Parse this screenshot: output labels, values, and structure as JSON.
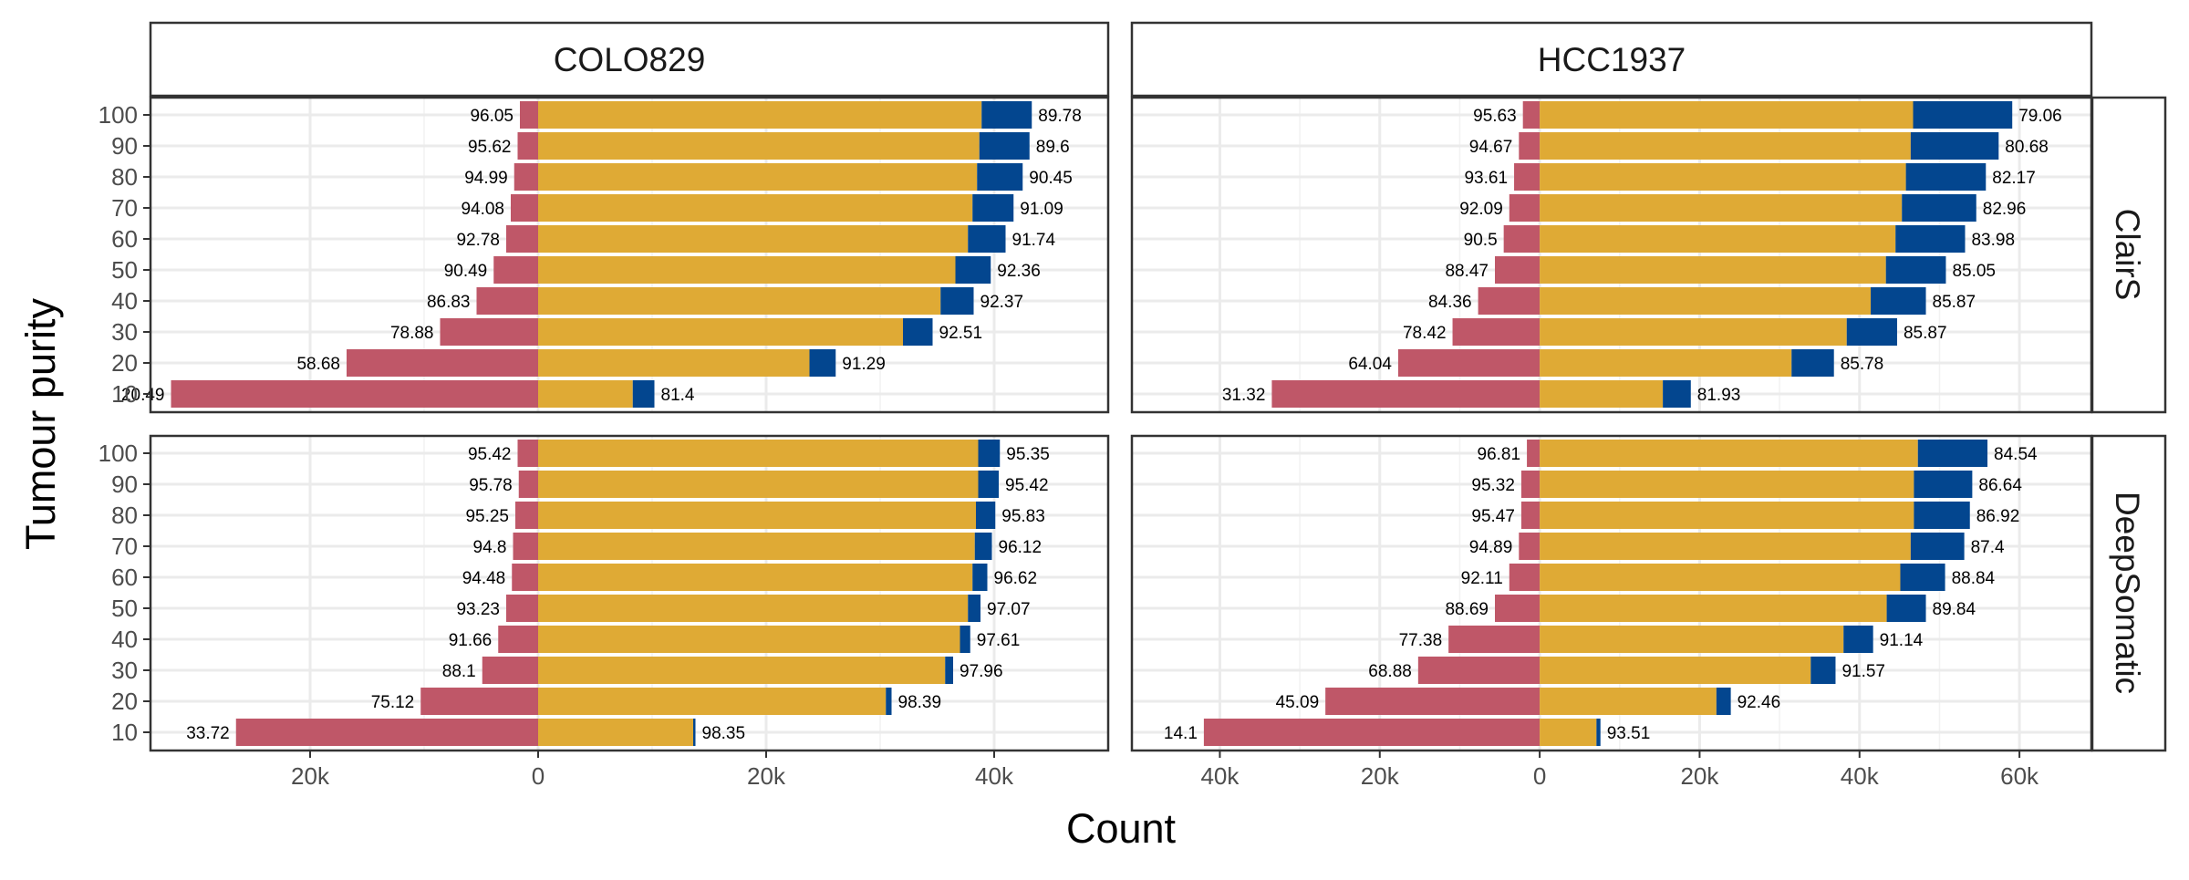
{
  "chart_data": {
    "type": "bar",
    "orientation": "horizontal",
    "layout": "faceted 2x2 diverging stacked bars",
    "xlabel": "Count",
    "ylabel": "Tumour purity",
    "column_facets": [
      "COLO829",
      "HCC1937"
    ],
    "row_facets": [
      "ClairS",
      "DeepSomatic"
    ],
    "categories": [
      "100",
      "90",
      "80",
      "70",
      "60",
      "50",
      "40",
      "30",
      "20",
      "10"
    ],
    "colors": {
      "left": "#BF5768",
      "middle": "#DFAA35",
      "right": "#03468F"
    },
    "grid": true,
    "panels": [
      {
        "column": "COLO829",
        "row": "ClairS",
        "xlim": [
          -34000,
          50000
        ],
        "ticks": [
          {
            "v": -20000,
            "label": "20k"
          },
          {
            "v": 0,
            "label": "0"
          },
          {
            "v": 20000,
            "label": "20k"
          },
          {
            "v": 40000,
            "label": "40k"
          }
        ],
        "left": [
          1600,
          1800,
          2100,
          2400,
          2800,
          3900,
          5400,
          8600,
          16800,
          32200
        ],
        "middle": [
          38900,
          38700,
          38500,
          38100,
          37700,
          36600,
          35300,
          32000,
          23800,
          8300
        ],
        "right": [
          4400,
          4400,
          4000,
          3600,
          3300,
          3100,
          2900,
          2600,
          2300,
          1900
        ],
        "left_labels": [
          "96.05",
          "95.62",
          "94.99",
          "94.08",
          "92.78",
          "90.49",
          "86.83",
          "78.88",
          "58.68",
          "20.49"
        ],
        "right_labels": [
          "89.78",
          "89.6",
          "90.45",
          "91.09",
          "91.74",
          "92.36",
          "92.37",
          "92.51",
          "91.29",
          "81.4"
        ]
      },
      {
        "column": "HCC1937",
        "row": "ClairS",
        "xlim": [
          -51000,
          69000
        ],
        "ticks": [
          {
            "v": -40000,
            "label": "40k"
          },
          {
            "v": -20000,
            "label": "20k"
          },
          {
            "v": 0,
            "label": "0"
          },
          {
            "v": 20000,
            "label": "20k"
          },
          {
            "v": 40000,
            "label": "40k"
          },
          {
            "v": 60000,
            "label": "60k"
          }
        ],
        "left": [
          2100,
          2600,
          3200,
          3800,
          4500,
          5600,
          7700,
          10900,
          17700,
          33500
        ],
        "middle": [
          46700,
          46400,
          45800,
          45300,
          44500,
          43300,
          41400,
          38400,
          31500,
          15400
        ],
        "right": [
          12400,
          11000,
          10000,
          9300,
          8700,
          7500,
          6900,
          6300,
          5300,
          3500
        ],
        "left_labels": [
          "95.63",
          "94.67",
          "93.61",
          "92.09",
          "90.5",
          "88.47",
          "84.36",
          "78.42",
          "64.04",
          "31.32"
        ],
        "right_labels": [
          "79.06",
          "80.68",
          "82.17",
          "82.96",
          "83.98",
          "85.05",
          "85.87",
          "85.87",
          "85.78",
          "81.93"
        ]
      },
      {
        "column": "COLO829",
        "row": "DeepSomatic",
        "xlim": [
          -34000,
          50000
        ],
        "ticks": [
          {
            "v": -20000,
            "label": "20k"
          },
          {
            "v": 0,
            "label": "0"
          },
          {
            "v": 20000,
            "label": "20k"
          },
          {
            "v": 40000,
            "label": "40k"
          }
        ],
        "left": [
          1800,
          1700,
          2000,
          2200,
          2300,
          2800,
          3500,
          4900,
          10300,
          26500
        ],
        "middle": [
          38600,
          38600,
          38400,
          38300,
          38100,
          37700,
          37000,
          35700,
          30500,
          13600
        ],
        "right": [
          1900,
          1800,
          1700,
          1500,
          1300,
          1100,
          900,
          700,
          500,
          200
        ],
        "left_labels": [
          "95.42",
          "95.78",
          "95.25",
          "94.8",
          "94.48",
          "93.23",
          "91.66",
          "88.1",
          "75.12",
          "33.72"
        ],
        "right_labels": [
          "95.35",
          "95.42",
          "95.83",
          "96.12",
          "96.62",
          "97.07",
          "97.61",
          "97.96",
          "98.39",
          "98.35"
        ]
      },
      {
        "column": "HCC1937",
        "row": "DeepSomatic",
        "xlim": [
          -51000,
          69000
        ],
        "ticks": [
          {
            "v": -40000,
            "label": "40k"
          },
          {
            "v": -20000,
            "label": "20k"
          },
          {
            "v": 0,
            "label": "0"
          },
          {
            "v": 20000,
            "label": "20k"
          },
          {
            "v": 40000,
            "label": "40k"
          },
          {
            "v": 60000,
            "label": "60k"
          }
        ],
        "left": [
          1600,
          2300,
          2300,
          2600,
          3800,
          5600,
          11400,
          15200,
          26800,
          42000
        ],
        "middle": [
          47300,
          46800,
          46800,
          46400,
          45100,
          43400,
          38000,
          33900,
          22100,
          7100
        ],
        "right": [
          8700,
          7300,
          7000,
          6700,
          5600,
          4900,
          3700,
          3100,
          1800,
          500
        ],
        "left_labels": [
          "96.81",
          "95.32",
          "95.47",
          "94.89",
          "92.11",
          "88.69",
          "77.38",
          "68.88",
          "45.09",
          "14.1"
        ],
        "right_labels": [
          "84.54",
          "86.64",
          "86.92",
          "87.4",
          "88.84",
          "89.84",
          "91.14",
          "91.57",
          "92.46",
          "93.51"
        ]
      }
    ]
  }
}
